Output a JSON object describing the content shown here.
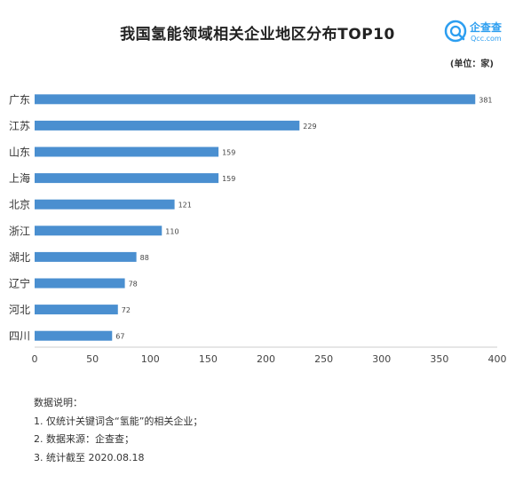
{
  "title": "我国氢能领域相关企业地区分布TOP10",
  "unit": "(单位：家)",
  "logo": {
    "name": "企查查",
    "sub": "Qcc.com"
  },
  "colors": {
    "bar": "#4a8fd0",
    "axis": "#cccccc",
    "brand": "#2c9ef0"
  },
  "notes": {
    "heading": "数据说明：",
    "items": [
      "1. 仅统计关键词含“氢能”的相关企业；",
      "2. 数据来源：企查查；",
      "3. 统计截至 2020.08.18"
    ]
  },
  "chart_data": {
    "type": "bar",
    "orientation": "horizontal",
    "title": "我国氢能领域相关企业地区分布TOP10",
    "xlabel": "",
    "ylabel": "",
    "categories": [
      "广东",
      "江苏",
      "山东",
      "上海",
      "北京",
      "浙江",
      "湖北",
      "辽宁",
      "河北",
      "四川"
    ],
    "values": [
      381,
      229,
      159,
      159,
      121,
      110,
      88,
      78,
      72,
      67
    ],
    "xlim": [
      0,
      400
    ],
    "xticks": [
      0,
      50,
      100,
      150,
      200,
      250,
      300,
      350,
      400
    ],
    "grid": false,
    "legend": "none"
  }
}
